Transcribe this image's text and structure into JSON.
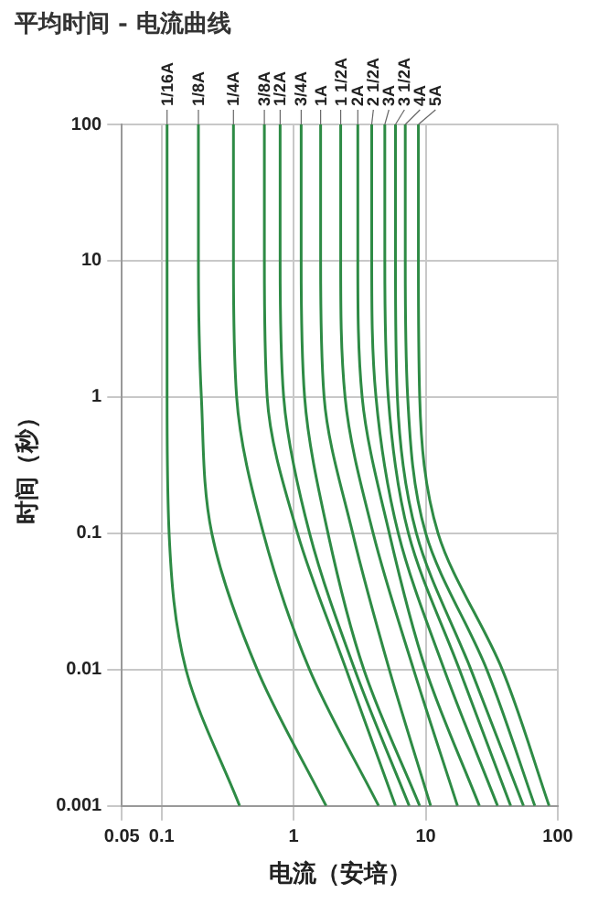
{
  "chart_data": {
    "type": "line",
    "title": "平均时间 - 电流曲线",
    "xlabel": "电流（安培）",
    "ylabel": "时间（秒）",
    "log": "xy",
    "xlim": [
      0.05,
      100
    ],
    "ylim": [
      0.001,
      100
    ],
    "xticks": [
      0.05,
      0.1,
      1,
      10,
      100
    ],
    "yticks": [
      0.001,
      0.01,
      0.1,
      1,
      10,
      100
    ],
    "grid": true,
    "legend": false,
    "marker": "none",
    "line_style": "solid",
    "series": [
      {
        "name": "1/16A",
        "color": "#2e8b45",
        "x": [
          0.11,
          0.11,
          0.11,
          0.114,
          0.153,
          0.39
        ],
        "values": [
          100,
          10,
          1,
          0.1,
          0.01,
          0.001
        ]
      },
      {
        "name": "1/8A",
        "color": "#2e8b45",
        "x": [
          0.19,
          0.19,
          0.2,
          0.24,
          0.53,
          1.76
        ],
        "values": [
          100,
          10,
          1,
          0.1,
          0.01,
          0.001
        ]
      },
      {
        "name": "1/4A",
        "color": "#2e8b45",
        "x": [
          0.35,
          0.35,
          0.37,
          0.59,
          1.32,
          4.4
        ],
        "values": [
          100,
          10,
          1,
          0.1,
          0.01,
          0.001
        ]
      },
      {
        "name": "3/8A",
        "color": "#2e8b45",
        "x": [
          0.6,
          0.6,
          0.63,
          1.07,
          2.5,
          5.9
        ],
        "values": [
          100,
          10,
          1,
          0.1,
          0.01,
          0.001
        ]
      },
      {
        "name": "1/2A",
        "color": "#2e8b45",
        "x": [
          0.79,
          0.79,
          0.84,
          1.32,
          2.9,
          7.5
        ],
        "values": [
          100,
          10,
          1,
          0.1,
          0.01,
          0.001
        ]
      },
      {
        "name": "3/4A",
        "color": "#2e8b45",
        "x": [
          1.14,
          1.14,
          1.21,
          1.82,
          3.4,
          9
        ],
        "values": [
          100,
          10,
          1,
          0.1,
          0.01,
          0.001
        ]
      },
      {
        "name": "1A",
        "color": "#2e8b45",
        "x": [
          1.6,
          1.6,
          1.7,
          2.8,
          5.3,
          10.9
        ],
        "values": [
          100,
          10,
          1,
          0.1,
          0.01,
          0.001
        ]
      },
      {
        "name": "1 1/2A",
        "color": "#2e8b45",
        "x": [
          2.27,
          2.27,
          2.45,
          4,
          8.1,
          17.4
        ],
        "values": [
          100,
          10,
          1,
          0.1,
          0.01,
          0.001
        ]
      },
      {
        "name": "2A",
        "color": "#2e8b45",
        "x": [
          3.06,
          3.06,
          3.3,
          5.3,
          10,
          25.5
        ],
        "values": [
          100,
          10,
          1,
          0.1,
          0.01,
          0.001
        ]
      },
      {
        "name": "2 1/2A",
        "color": "#2e8b45",
        "x": [
          3.9,
          3.9,
          4.2,
          6.2,
          13.8,
          35
        ],
        "values": [
          100,
          10,
          1,
          0.1,
          0.01,
          0.001
        ]
      },
      {
        "name": "3A",
        "color": "#2e8b45",
        "x": [
          4.9,
          4.9,
          5.2,
          7.4,
          18,
          44
        ],
        "values": [
          100,
          10,
          1,
          0.1,
          0.01,
          0.001
        ]
      },
      {
        "name": "3 1/2A",
        "color": "#2e8b45",
        "x": [
          5.9,
          5.9,
          6.1,
          8.5,
          22,
          55
        ],
        "values": [
          100,
          10,
          1,
          0.1,
          0.01,
          0.001
        ]
      },
      {
        "name": "4A",
        "color": "#2e8b45",
        "x": [
          7,
          7,
          7.3,
          10,
          29,
          67
        ],
        "values": [
          100,
          10,
          1,
          0.1,
          0.01,
          0.001
        ]
      },
      {
        "name": "5A",
        "color": "#2e8b45",
        "x": [
          8.8,
          8.8,
          9,
          12.4,
          38,
          86
        ],
        "values": [
          100,
          10,
          1,
          0.1,
          0.01,
          0.001
        ]
      }
    ]
  }
}
